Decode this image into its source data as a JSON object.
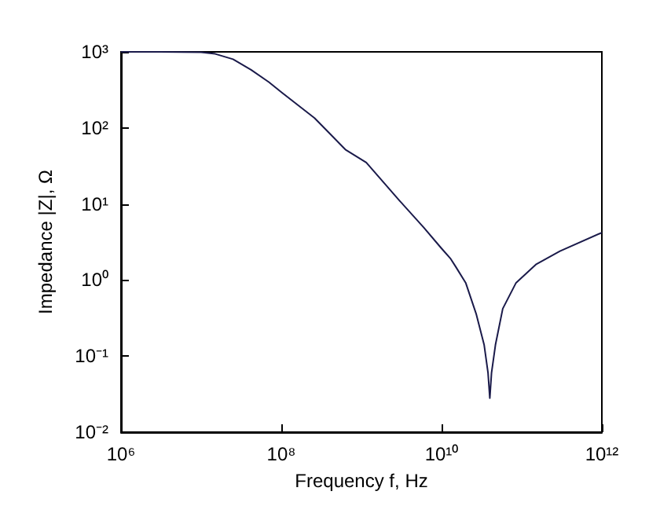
{
  "chart_data": {
    "type": "line",
    "xlabel": "Frequency f, Hz",
    "ylabel": "Impedance |Z|, Ω",
    "log": "xy",
    "grid": false,
    "marker": "none",
    "line_style": "solid",
    "xlim": [
      1000000,
      1000000000000
    ],
    "ylim": [
      0.01,
      1000
    ],
    "xticks": [
      {
        "value": 1000000,
        "label": "10⁶"
      },
      {
        "value": 100000000,
        "label": "10⁸"
      },
      {
        "value": 10000000000,
        "label": "10¹⁰"
      },
      {
        "value": 1000000000000,
        "label": "10¹²"
      }
    ],
    "yticks": [
      {
        "value": 0.01,
        "label": "10⁻²"
      },
      {
        "value": 0.1,
        "label": "10⁻¹"
      },
      {
        "value": 1,
        "label": "10⁰"
      },
      {
        "value": 10,
        "label": "10¹"
      },
      {
        "value": 100,
        "label": "10²"
      },
      {
        "value": 1000,
        "label": "10³"
      }
    ],
    "series": [
      {
        "color": "#1a1a4a",
        "x": [
          1000000,
          3000000,
          10000000,
          15000000,
          25000000,
          42000000,
          70000000,
          100000000,
          260000000,
          630000000,
          1150000000,
          3000000000,
          6000000000,
          10000000000,
          13000000000,
          15000000000,
          20000000000,
          27000000000,
          34000000000,
          38000000000,
          40000000000,
          42000000000,
          47000000000,
          58000000000,
          85000000000,
          150000000000,
          300000000000,
          1000000000000
        ],
        "values": [
          1000,
          1000,
          990,
          940,
          800,
          580,
          400,
          295,
          135,
          52,
          35,
          11,
          4.9,
          2.6,
          1.9,
          1.5,
          0.92,
          0.36,
          0.14,
          0.06,
          0.028,
          0.06,
          0.14,
          0.42,
          0.92,
          1.6,
          2.4,
          4.2
        ]
      }
    ]
  }
}
